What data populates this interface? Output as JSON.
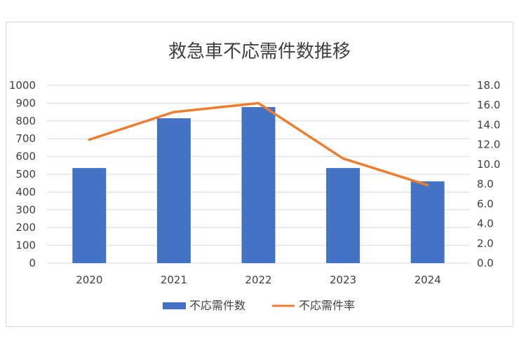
{
  "chart_data": {
    "type": "bar+line",
    "title": "救急車不応需件数推移",
    "categories": [
      "2020",
      "2021",
      "2022",
      "2023",
      "2024"
    ],
    "series": [
      {
        "name": "不応需件数",
        "type": "bar",
        "axis": "left",
        "values": [
          535,
          815,
          878,
          535,
          460
        ],
        "color": "#4472C4"
      },
      {
        "name": "不応需件率",
        "type": "line",
        "axis": "right",
        "values": [
          12.5,
          15.3,
          16.2,
          10.6,
          7.9
        ],
        "color": "#ED7D31"
      }
    ],
    "y_left": {
      "min": 0,
      "max": 1000,
      "step": 100,
      "ticks": [
        "0",
        "100",
        "200",
        "300",
        "400",
        "500",
        "600",
        "700",
        "800",
        "900",
        "1000"
      ]
    },
    "y_right": {
      "min": 0,
      "max": 18,
      "step": 2,
      "ticks": [
        "0.0",
        "2.0",
        "4.0",
        "6.0",
        "8.0",
        "10.0",
        "12.0",
        "14.0",
        "16.0",
        "18.0"
      ]
    },
    "grid": true,
    "legend_position": "bottom"
  }
}
